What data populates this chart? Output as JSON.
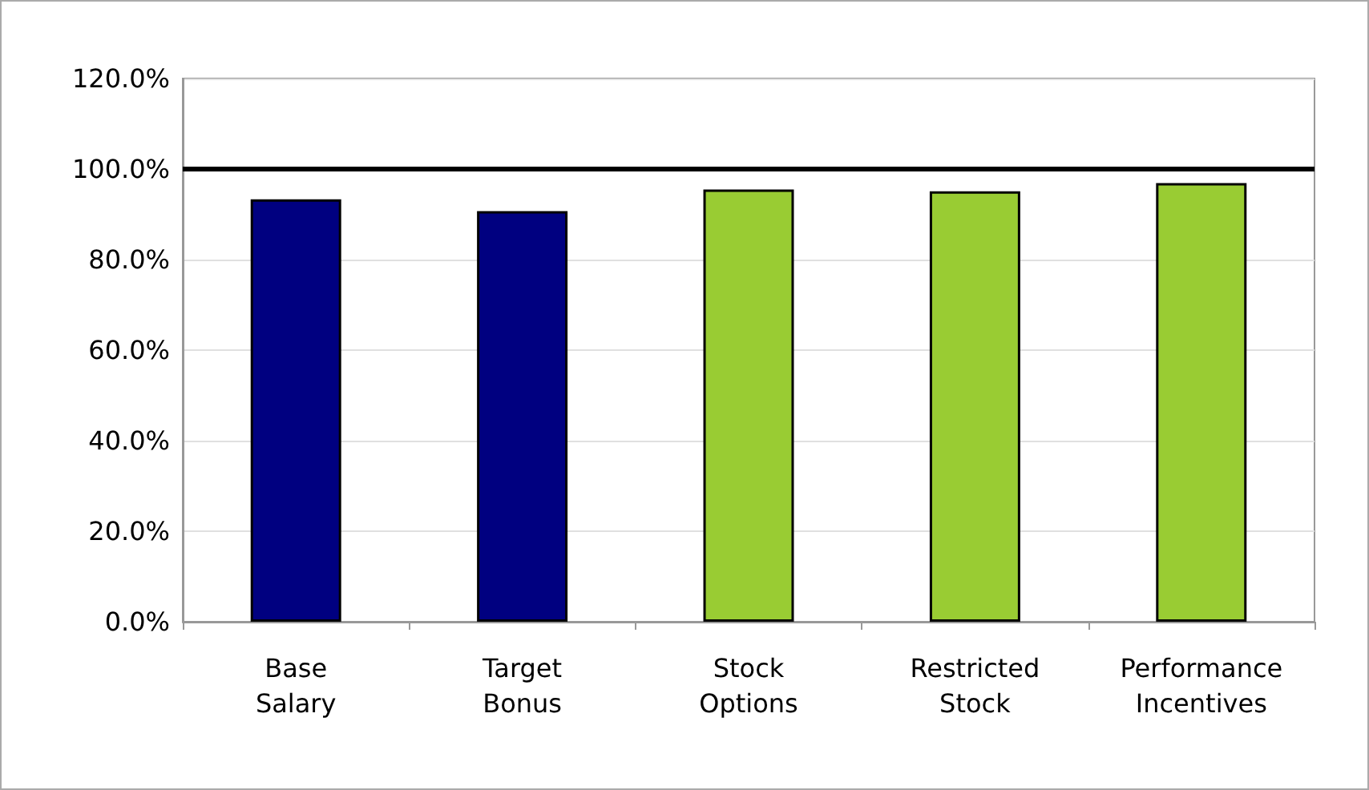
{
  "chart_data": {
    "type": "bar",
    "categories": [
      "Base\nSalary",
      "Target\nBonus",
      "Stock\nOptions",
      "Restricted\nStock",
      "Performance\nIncentives"
    ],
    "values": [
      93.3,
      90.7,
      95.5,
      95.1,
      96.9
    ],
    "colors": [
      "#000080",
      "#000080",
      "#99cc33",
      "#99cc33",
      "#99cc33"
    ],
    "ylim": [
      0,
      120
    ],
    "yticks": [
      {
        "value": 0,
        "label": "0.0%"
      },
      {
        "value": 20,
        "label": "20.0%"
      },
      {
        "value": 40,
        "label": "40.0%"
      },
      {
        "value": 60,
        "label": "60.0%"
      },
      {
        "value": 80,
        "label": "80.0%"
      },
      {
        "value": 100,
        "label": "100.0%"
      },
      {
        "value": 120,
        "label": "120.0%"
      }
    ],
    "grid": "y",
    "ref_lines": [
      {
        "axis": "y",
        "value": 100,
        "color": "#000000",
        "line_style": "solid"
      }
    ]
  }
}
